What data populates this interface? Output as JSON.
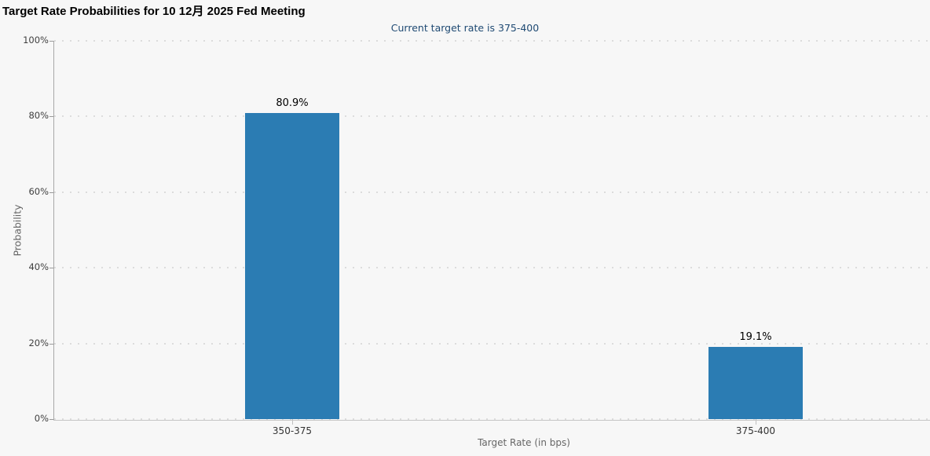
{
  "title": "Target Rate Probabilities for 10 12月 2025 Fed Meeting",
  "subtitle": "Current target rate is 375-400",
  "chart_data": {
    "type": "bar",
    "categories": [
      "350-375",
      "375-400"
    ],
    "values": [
      80.9,
      19.1
    ],
    "value_labels": [
      "80.9%",
      "19.1%"
    ],
    "title": "Target Rate Probabilities for 10 12月 2025 Fed Meeting",
    "subtitle": "Current target rate is 375-400",
    "xlabel": "Target Rate (in bps)",
    "ylabel": "Probability",
    "ylim": [
      0,
      100
    ],
    "ytick_step": 20,
    "yticks": [
      "0%",
      "20%",
      "40%",
      "60%",
      "80%",
      "100%"
    ],
    "legend": "none",
    "grid": "horizontal-dotted"
  },
  "colors": {
    "background": "#f7f7f7",
    "bar": "#2b7cb3",
    "title_text": "#000000",
    "subtitle_text": "#1f4a73",
    "grid": "#dcdcdc",
    "x_axis_line": "#c6c6c6",
    "y_axis_line": "#a8a8a8",
    "tick_label": "#3f3f3f",
    "category_label": "#333333",
    "axis_title": "#666666"
  }
}
